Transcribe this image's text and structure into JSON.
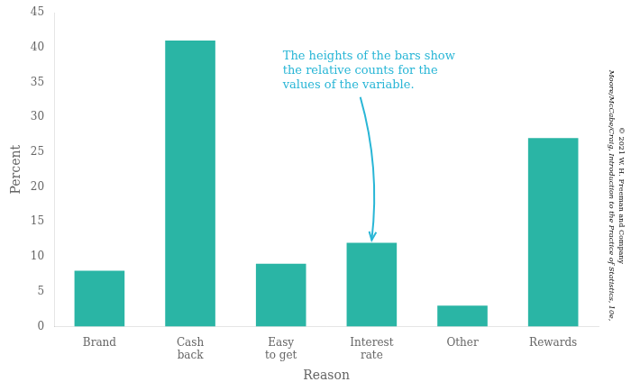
{
  "chart_data": {
    "type": "bar",
    "xlabel": "Reason",
    "ylabel": "Percent",
    "categories": [
      "Brand",
      "Cash\nback",
      "Easy\nto get",
      "Interest\nrate",
      "Other",
      "Rewards"
    ],
    "values": [
      8,
      41,
      9,
      12,
      3,
      27
    ],
    "color": "#2ab5a5",
    "ylim": [
      0,
      45
    ],
    "yticks": [
      0,
      5,
      10,
      15,
      20,
      25,
      30,
      35,
      40,
      45
    ],
    "grid": false,
    "annotations": [
      {
        "text": "The heights of the bars show\nthe relative counts for the\nvalues of the variable.",
        "x": "Interest\nrate",
        "y": 12,
        "color": "#29b6d6"
      },
      {
        "text": "Moore/McCabe/Craig, Introduction to the Practice of Statistics, 10e,"
      },
      {
        "text": "© 2021 W. H. Freeman and Company"
      }
    ]
  }
}
